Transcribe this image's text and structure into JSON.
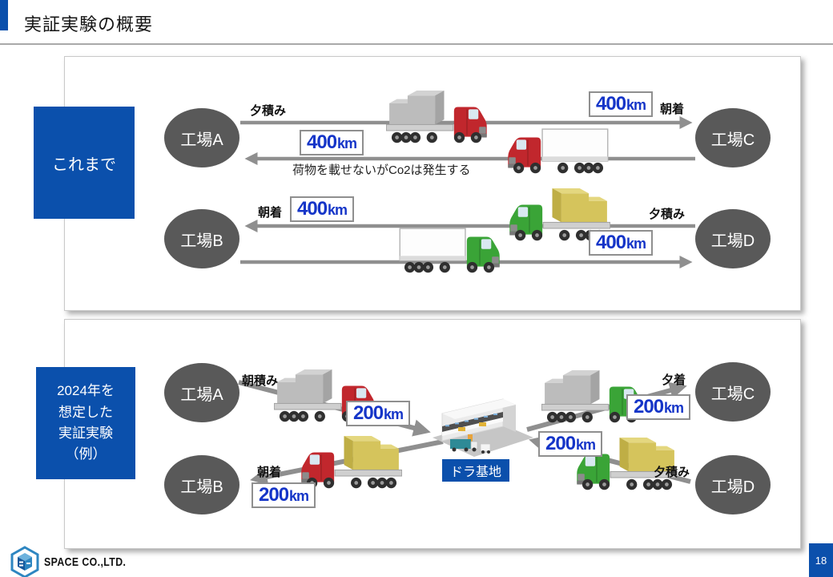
{
  "header": {
    "title": "実証実験の概要"
  },
  "footer": {
    "company": "SPACE CO.,LTD.",
    "page_number": "18"
  },
  "colors": {
    "accent_blue": "#0b50ac",
    "node_gray": "#595959",
    "arrow_gray": "#8f8f8f",
    "km_blue": "#1535c8",
    "truck_red": "#c1272d",
    "truck_green": "#3aa437",
    "cargo_gray": "#bcbcbc",
    "cargo_yellow": "#d5c45c"
  },
  "top_panel": {
    "label": "これまで",
    "factories": {
      "a": "工場A",
      "b": "工場B",
      "c": "工場C",
      "d": "工場D"
    },
    "route_ac": {
      "depart_label": "夕積み",
      "outbound_distance_value": "400",
      "outbound_distance_unit": "km",
      "arrive_label": "朝着",
      "return_distance_value": "400",
      "return_distance_unit": "km",
      "return_note": "荷物を載せないがCo2は発生する"
    },
    "route_bd": {
      "arrive_label": "朝着",
      "inbound_distance_value": "400",
      "inbound_distance_unit": "km",
      "depart_label": "夕積み",
      "outbound_distance_value": "400",
      "outbound_distance_unit": "km"
    }
  },
  "bottom_panel": {
    "label_lines": [
      "2024年を",
      "想定した",
      "実証実験",
      "（例）"
    ],
    "factories": {
      "a": "工場A",
      "b": "工場B",
      "c": "工場C",
      "d": "工場D"
    },
    "base_label": "ドラ基地",
    "leg_a": {
      "label": "朝積み",
      "distance_value": "200",
      "distance_unit": "km"
    },
    "leg_b": {
      "label": "朝着",
      "distance_value": "200",
      "distance_unit": "km"
    },
    "leg_c": {
      "label": "夕着",
      "distance_value": "200",
      "distance_unit": "km"
    },
    "leg_d": {
      "label": "夕積み",
      "distance_value": "200",
      "distance_unit": "km"
    }
  },
  "trucks": [
    {
      "cab": "red",
      "cargo": "gray",
      "facing": "right"
    },
    {
      "cab": "red",
      "cargo": "none",
      "facing": "left"
    },
    {
      "cab": "green",
      "cargo": "yellow",
      "facing": "left"
    },
    {
      "cab": "green",
      "cargo": "none",
      "facing": "right"
    },
    {
      "cab": "red",
      "cargo": "gray",
      "facing": "right"
    },
    {
      "cab": "red",
      "cargo": "yellow",
      "facing": "left"
    },
    {
      "cab": "green",
      "cargo": "gray",
      "facing": "right"
    },
    {
      "cab": "green",
      "cargo": "yellow",
      "facing": "left"
    }
  ]
}
